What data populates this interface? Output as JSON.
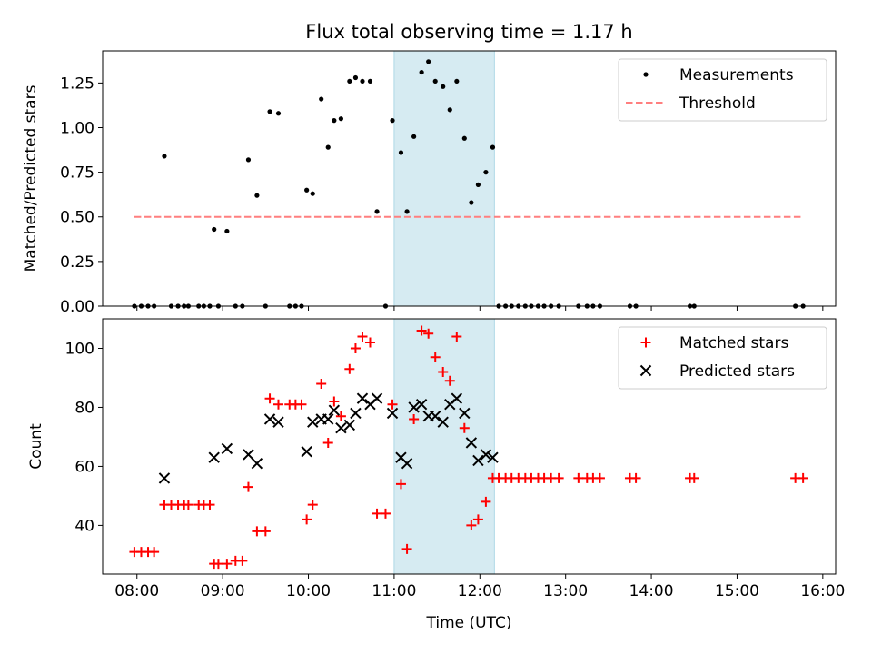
{
  "chart_data": [
    {
      "type": "scatter",
      "title": "Flux total observing time = 1.17 h",
      "ylabel": "Matched/Predicted stars",
      "xlabel": "",
      "xlim": [
        7.6,
        16.15
      ],
      "ylim": [
        0.0,
        1.43
      ],
      "yticks": [
        0.0,
        0.25,
        0.5,
        0.75,
        1.0,
        1.25
      ],
      "ytick_labels": [
        "0.00",
        "0.25",
        "0.50",
        "0.75",
        "1.00",
        "1.25"
      ],
      "xticks": [
        8,
        9,
        10,
        11,
        12,
        13,
        14,
        15,
        16
      ],
      "highlight_span": [
        11.0,
        12.17
      ],
      "legend_position": "upper right",
      "series": [
        {
          "name": "Measurements",
          "color": "#000000",
          "marker": "dot",
          "x": [
            7.97,
            8.05,
            8.13,
            8.2,
            8.32,
            8.4,
            8.48,
            8.55,
            8.6,
            8.72,
            8.78,
            8.85,
            8.9,
            8.95,
            9.05,
            9.15,
            9.23,
            9.3,
            9.4,
            9.5,
            9.55,
            9.65,
            9.78,
            9.85,
            9.92,
            9.98,
            10.05,
            10.15,
            10.23,
            10.3,
            10.38,
            10.48,
            10.55,
            10.63,
            10.72,
            10.8,
            10.9,
            10.98,
            11.08,
            11.15,
            11.23,
            11.32,
            11.4,
            11.48,
            11.57,
            11.65,
            11.73,
            11.82,
            11.9,
            11.98,
            12.07,
            12.15,
            12.22,
            12.3,
            12.37,
            12.45,
            12.53,
            12.6,
            12.68,
            12.75,
            12.83,
            12.92,
            13.15,
            13.25,
            13.32,
            13.4,
            13.75,
            13.82,
            14.45,
            14.5,
            15.68,
            15.77
          ],
          "y": [
            0,
            0,
            0,
            0,
            0.84,
            0,
            0,
            0,
            0,
            0,
            0,
            0,
            0.43,
            0,
            0.42,
            0,
            0,
            0.82,
            0.62,
            0,
            1.09,
            1.08,
            0,
            0,
            0,
            0.65,
            0.63,
            1.16,
            0.89,
            1.04,
            1.05,
            1.26,
            1.28,
            1.26,
            1.26,
            0.53,
            0,
            1.04,
            0.86,
            0.53,
            0.95,
            1.31,
            1.37,
            1.26,
            1.23,
            1.1,
            1.26,
            0.94,
            0.58,
            0.68,
            0.75,
            0.89,
            0,
            0,
            0,
            0,
            0,
            0,
            0,
            0,
            0,
            0,
            0,
            0,
            0,
            0,
            0,
            0,
            0,
            0,
            0,
            0
          ]
        },
        {
          "name": "Threshold",
          "color": "#ff7f7f",
          "linestyle": "dashed",
          "x": [
            7.97,
            15.77
          ],
          "y": [
            0.5,
            0.5
          ]
        }
      ]
    },
    {
      "type": "scatter",
      "title": "",
      "ylabel": "Count",
      "xlabel": "Time (UTC)",
      "xlim": [
        7.6,
        16.15
      ],
      "ylim": [
        23.5,
        110
      ],
      "yticks": [
        40,
        60,
        80,
        100
      ],
      "ytick_labels": [
        "40",
        "60",
        "80",
        "100"
      ],
      "xticks": [
        8,
        9,
        10,
        11,
        12,
        13,
        14,
        15,
        16
      ],
      "xtick_labels": [
        "08:00",
        "09:00",
        "10:00",
        "11:00",
        "12:00",
        "13:00",
        "14:00",
        "15:00",
        "16:00"
      ],
      "highlight_span": [
        11.0,
        12.17
      ],
      "legend_position": "upper right",
      "series": [
        {
          "name": "Matched stars",
          "color": "#ff0000",
          "marker": "plus",
          "x": [
            7.97,
            8.05,
            8.13,
            8.2,
            8.32,
            8.4,
            8.48,
            8.55,
            8.6,
            8.72,
            8.78,
            8.85,
            8.9,
            8.95,
            9.05,
            9.15,
            9.23,
            9.3,
            9.4,
            9.5,
            9.55,
            9.65,
            9.78,
            9.85,
            9.92,
            9.98,
            10.05,
            10.15,
            10.23,
            10.3,
            10.38,
            10.48,
            10.55,
            10.63,
            10.72,
            10.8,
            10.9,
            10.98,
            11.08,
            11.15,
            11.23,
            11.32,
            11.4,
            11.48,
            11.57,
            11.65,
            11.73,
            11.82,
            11.9,
            11.98,
            12.07,
            12.15,
            12.22,
            12.3,
            12.37,
            12.45,
            12.53,
            12.6,
            12.68,
            12.75,
            12.83,
            12.92,
            13.15,
            13.25,
            13.32,
            13.4,
            13.75,
            13.82,
            14.45,
            14.5,
            15.68,
            15.77
          ],
          "y": [
            31,
            31,
            31,
            31,
            47,
            47,
            47,
            47,
            47,
            47,
            47,
            47,
            27,
            27,
            27,
            28,
            28,
            53,
            38,
            38,
            83,
            81,
            81,
            81,
            81,
            42,
            47,
            88,
            68,
            82,
            77,
            93,
            100,
            104,
            102,
            44,
            44,
            81,
            54,
            32,
            76,
            106,
            105,
            97,
            92,
            89,
            104,
            73,
            40,
            42,
            48,
            56,
            56,
            56,
            56,
            56,
            56,
            56,
            56,
            56,
            56,
            56,
            56,
            56,
            56,
            56,
            56,
            56,
            56,
            56,
            56,
            56
          ]
        },
        {
          "name": "Predicted stars",
          "color": "#000000",
          "marker": "x",
          "x": [
            8.32,
            8.9,
            9.05,
            9.3,
            9.4,
            9.55,
            9.65,
            9.98,
            10.05,
            10.15,
            10.23,
            10.3,
            10.38,
            10.48,
            10.55,
            10.63,
            10.72,
            10.8,
            10.98,
            11.08,
            11.15,
            11.23,
            11.32,
            11.4,
            11.48,
            11.57,
            11.65,
            11.73,
            11.82,
            11.9,
            11.98,
            12.07,
            12.15
          ],
          "y": [
            56,
            63,
            66,
            64,
            61,
            76,
            75,
            65,
            75,
            76,
            76,
            79,
            73,
            74,
            78,
            83,
            81,
            83,
            78,
            63,
            61,
            80,
            81,
            77,
            77,
            75,
            81,
            83,
            78,
            68,
            62,
            64,
            63
          ]
        }
      ]
    }
  ]
}
